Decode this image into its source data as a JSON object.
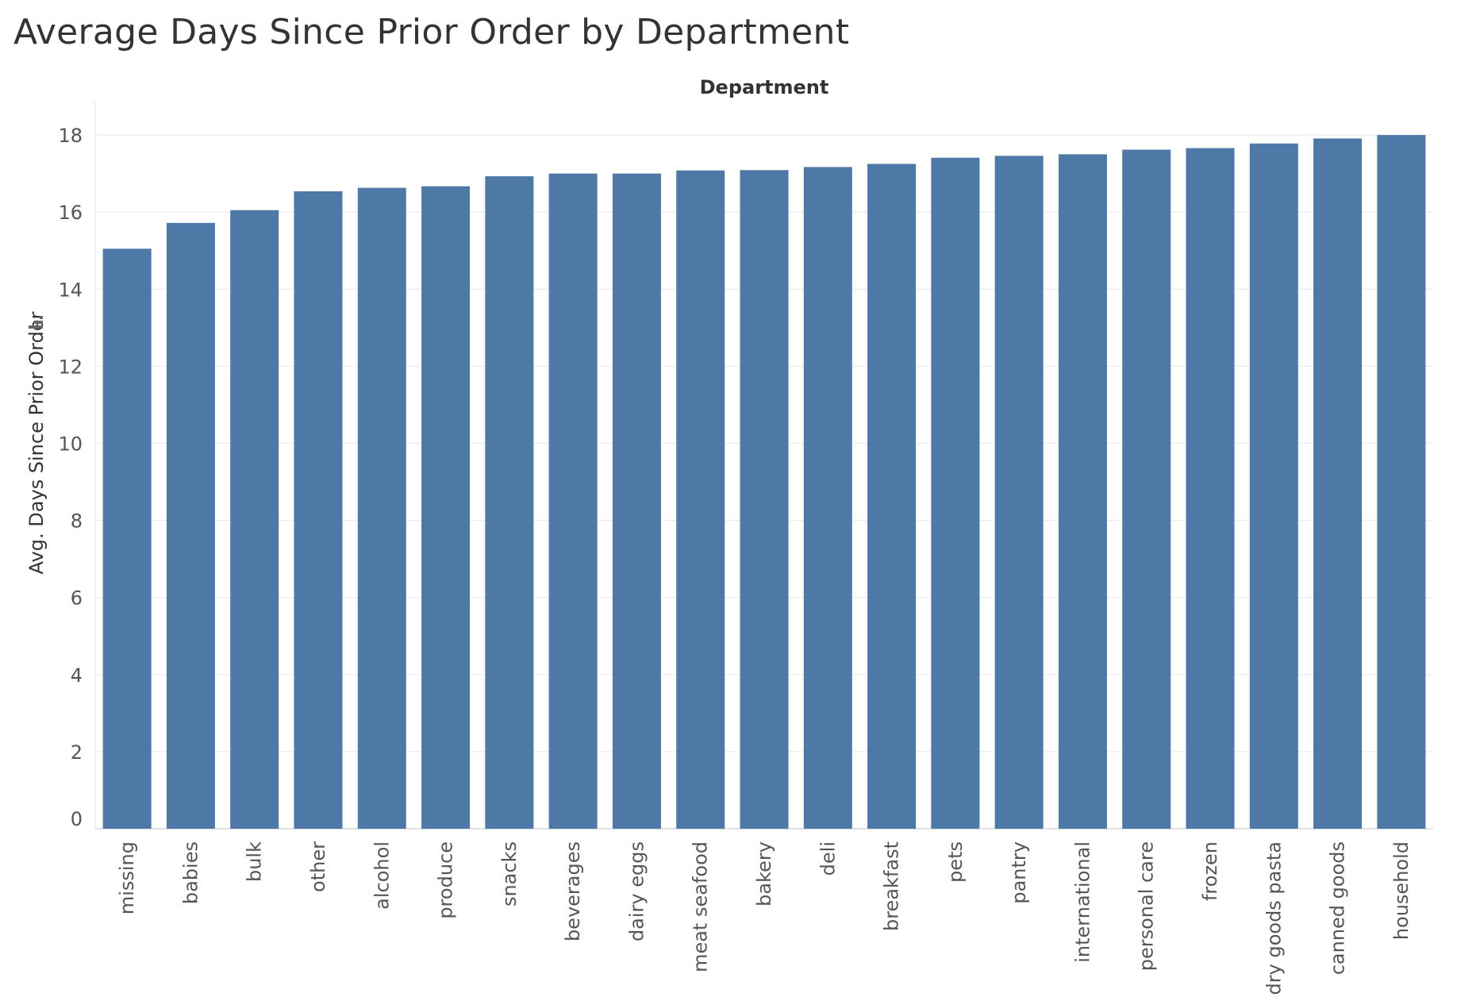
{
  "chart_data": {
    "type": "bar",
    "title": "Average Days Since Prior Order by Department",
    "column_header": "Department",
    "ylabel": "Avg. Days Since Prior Order",
    "xlabel": "",
    "ylim": [
      0,
      19
    ],
    "yticks": [
      0,
      2,
      4,
      6,
      8,
      10,
      12,
      14,
      16,
      18
    ],
    "grid": true,
    "bar_color": "#4e79a7",
    "categories": [
      "missing",
      "babies",
      "bulk",
      "other",
      "alcohol",
      "produce",
      "snacks",
      "beverages",
      "dairy eggs",
      "meat seafood",
      "bakery",
      "deli",
      "breakfast",
      "pets",
      "pantry",
      "international",
      "personal care",
      "frozen",
      "dry goods pasta",
      "canned goods",
      "household"
    ],
    "values": [
      15.05,
      15.72,
      16.05,
      16.54,
      16.63,
      16.67,
      16.93,
      17.0,
      17.0,
      17.08,
      17.09,
      17.17,
      17.25,
      17.41,
      17.46,
      17.5,
      17.62,
      17.66,
      17.78,
      17.91,
      18.0
    ],
    "sort_icon": "sort-descending-icon"
  }
}
